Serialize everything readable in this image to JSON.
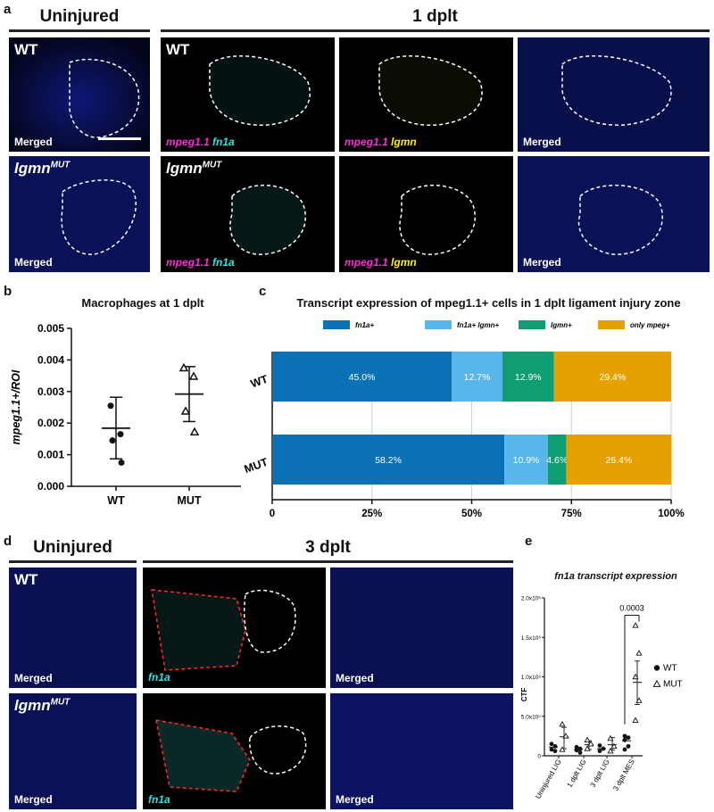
{
  "panels": {
    "a": {
      "label": "a",
      "header_left": "Uninjured",
      "header_right": "1 dplt",
      "rows": [
        {
          "genotype": "WT",
          "genotype_sup": ""
        },
        {
          "genotype": "lgmn",
          "genotype_sup": "MUT"
        }
      ],
      "stain_fn1a": {
        "a": "mpeg1.1",
        "b": "fn1a"
      },
      "stain_lgmn": {
        "a": "mpeg1.1",
        "b": "lgmn"
      },
      "merged": "Merged"
    },
    "b": {
      "label": "b"
    },
    "c": {
      "label": "c"
    },
    "d": {
      "label": "d",
      "header_left": "Uninjured",
      "header_right": "3 dplt",
      "rows": [
        {
          "genotype": "WT",
          "genotype_sup": ""
        },
        {
          "genotype": "lgmn",
          "genotype_sup": "MUT"
        }
      ],
      "stain": "fn1a",
      "merged": "Merged"
    },
    "e": {
      "label": "e"
    }
  },
  "charts": {
    "b": {
      "type": "scatter",
      "title": "Macrophages at 1 dplt",
      "ylabel": "mpeg1.1+/ROI",
      "categories": [
        "WT",
        "MUT"
      ],
      "ylim": [
        0,
        0.005
      ],
      "yticks": [
        "0.000",
        "0.001",
        "0.002",
        "0.003",
        "0.004",
        "0.005"
      ],
      "series": [
        {
          "category": "WT",
          "marker": "circle",
          "points": [
            0.00255,
            0.00165,
            0.00145,
            0.00075
          ],
          "mean": 0.00184,
          "sd_low": 0.00087,
          "sd_high": 0.00282
        },
        {
          "category": "MUT",
          "marker": "triangle",
          "points": [
            0.00375,
            0.00348,
            0.00238,
            0.00172
          ],
          "mean": 0.00292,
          "sd_low": 0.00205,
          "sd_high": 0.00379
        }
      ]
    },
    "c": {
      "type": "bar",
      "orientation": "horizontal-stacked",
      "title": "Transcript expression of mpeg1.1+ cells in 1 dplt ligament injury zone",
      "legend": [
        {
          "name": "fn1a+",
          "color": "#0a72b4"
        },
        {
          "name": "fn1a+ lgmn+",
          "color": "#58b6ea"
        },
        {
          "name": "lgmn+",
          "color": "#0f9e74"
        },
        {
          "name": "only mpeg+",
          "color": "#e6a100"
        }
      ],
      "categories": [
        "WT",
        "MUT"
      ],
      "rows": [
        {
          "name": "WT",
          "values": [
            45.0,
            12.7,
            12.9,
            29.4
          ],
          "labels": [
            "45.0%",
            "12.7%",
            "12.9%",
            "29.4%"
          ]
        },
        {
          "name": "MUT",
          "values": [
            58.2,
            10.9,
            4.6,
            26.4
          ],
          "labels": [
            "58.2%",
            "10.9%",
            "4.6%",
            "26.4%"
          ]
        }
      ],
      "xticks": [
        "0",
        "25%",
        "50%",
        "75%",
        "100%"
      ],
      "xlim": [
        0,
        100
      ],
      "grid": true
    },
    "e": {
      "type": "scatter",
      "title": "fn1a transcript expression",
      "ylabel": "CTF",
      "categories": [
        "Uninjured LIG",
        "1 dplt LIG",
        "3 dplt LIG",
        "3 dplt MES"
      ],
      "ylim": [
        0,
        2000000
      ],
      "yticks": [
        "0",
        "5.0x10⁵",
        "1.0x10⁶",
        "1.5x10⁶",
        "2.0x10⁶"
      ],
      "legend": [
        {
          "name": "WT",
          "marker": "circle"
        },
        {
          "name": "MUT",
          "marker": "triangle"
        }
      ],
      "annotation": "0.0003",
      "series": [
        {
          "name": "WT",
          "groups": [
            [
              150000,
              120000,
              80000,
              60000
            ],
            [
              110000,
              90000,
              70000,
              40000
            ],
            [
              130000,
              90000,
              60000
            ],
            [
              250000,
              230000,
              200000,
              120000,
              80000
            ]
          ],
          "means": [
            110000,
            80000,
            90000,
            190000
          ]
        },
        {
          "name": "MUT",
          "groups": [
            [
              400000,
              250000,
              80000
            ],
            [
              200000,
              150000,
              90000
            ],
            [
              220000,
              120000,
              60000
            ],
            [
              1650000,
              1300000,
              1000000,
              700000,
              450000
            ]
          ],
          "means": [
            240000,
            140000,
            140000,
            930000
          ],
          "sd_high": [
            360000,
            190000,
            230000,
            1200000
          ],
          "sd_low": [
            90000,
            80000,
            70000,
            650000
          ]
        }
      ]
    }
  },
  "colors": {
    "nuclei": "#1a2bd8",
    "magenta": "#ff2bd6",
    "cyan": "#35e0e0",
    "yellow": "#ffee22",
    "dashed_white": "#ffffff",
    "dashed_red": "#ff2a2a"
  }
}
